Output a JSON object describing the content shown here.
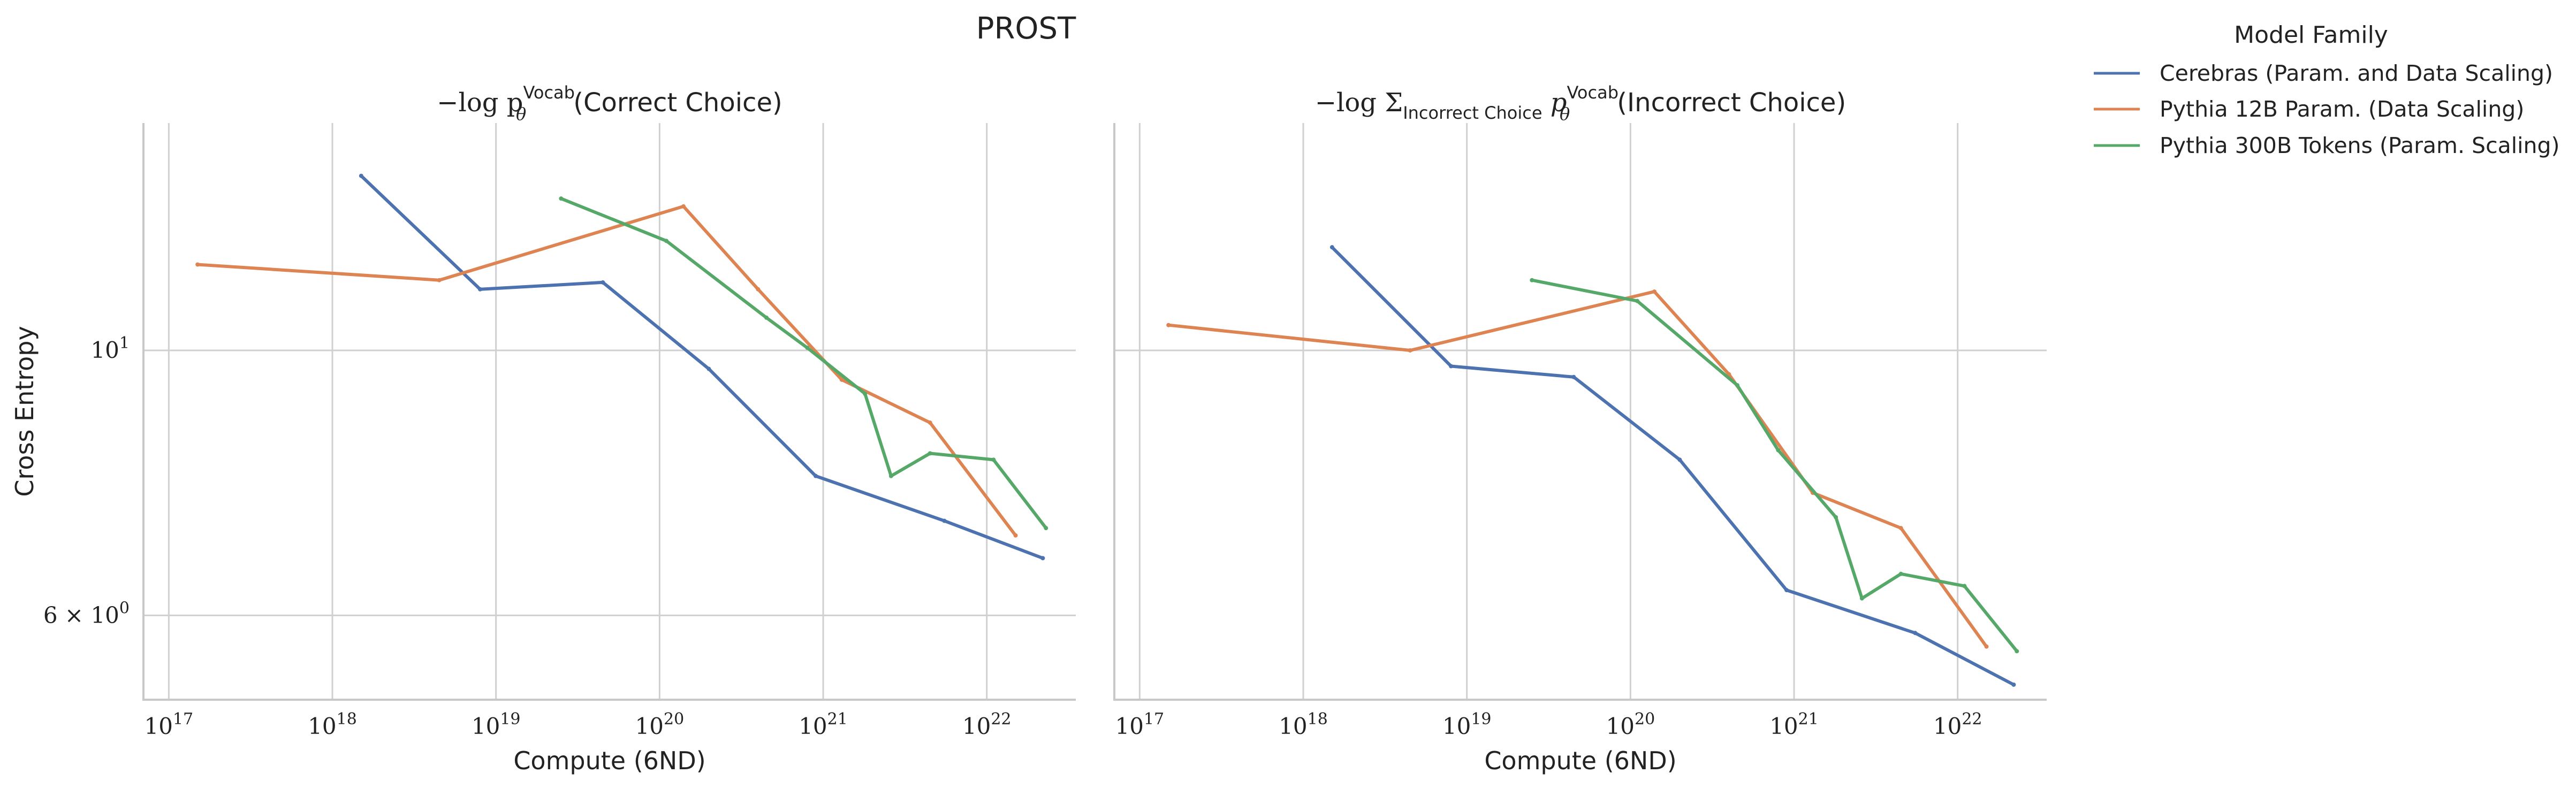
{
  "figure": {
    "title": "PROST",
    "legend": {
      "title": "Model Family",
      "placement": "top-right, outside plots",
      "entries": [
        {
          "label": "Cerebras (Param. and Data Scaling)",
          "color": "#4c72b0"
        },
        {
          "label": "Pythia 12B Param. (Data Scaling)",
          "color": "#dd8452"
        },
        {
          "label": "Pythia 300B Tokens (Param. Scaling)",
          "color": "#55a868"
        }
      ]
    }
  },
  "chart_data": [
    {
      "type": "line",
      "title": {
        "prefix": "−log p",
        "sup": "Vocab",
        "sub": "θ",
        "suffix": "(Correct Choice)"
      },
      "xlabel": "Compute (6ND)",
      "ylabel": "Cross Entropy",
      "xscale": "log",
      "yscale": "log",
      "xlim": [
        7e+16,
        3.5e+22
      ],
      "ylim": [
        5.1,
        15.5
      ],
      "xticks": [
        {
          "value": 1e+17,
          "base": "10",
          "exp": "17"
        },
        {
          "value": 1e+18,
          "base": "10",
          "exp": "18"
        },
        {
          "value": 1e+19,
          "base": "10",
          "exp": "19"
        },
        {
          "value": 1e+20,
          "base": "10",
          "exp": "20"
        },
        {
          "value": 1e+21,
          "base": "10",
          "exp": "21"
        },
        {
          "value": 1e+22,
          "base": "10",
          "exp": "22"
        }
      ],
      "yticks": [
        {
          "value": 10,
          "base": "10",
          "exp": "1"
        },
        {
          "value": 6,
          "base": "6 × 10",
          "exp": "0"
        }
      ],
      "grid": true,
      "series": [
        {
          "name": "Cerebras (Param. and Data Scaling)",
          "color": "#4c72b0",
          "x": [
            1.5e+18,
            8e+18,
            4.5e+19,
            2e+20,
            9e+20,
            5.5e+21,
            2.2e+22
          ],
          "y": [
            14.0,
            11.25,
            11.4,
            9.65,
            7.85,
            7.2,
            6.7
          ]
        },
        {
          "name": "Pythia 12B Param. (Data Scaling)",
          "color": "#dd8452",
          "x": [
            1.5e+17,
            4.5e+18,
            1.4e+20,
            4e+20,
            1.3e+21,
            4.5e+21,
            1.5e+22
          ],
          "y": [
            11.8,
            11.45,
            13.2,
            11.25,
            9.45,
            8.7,
            7.0
          ]
        },
        {
          "name": "Pythia 300B Tokens (Param. Scaling)",
          "color": "#55a868",
          "x": [
            2.5e+19,
            1.1e+20,
            4.5e+20,
            8e+20,
            1.8e+21,
            2.6e+21,
            4.5e+21,
            1.1e+22,
            2.3e+22
          ],
          "y": [
            13.4,
            12.35,
            10.65,
            10.05,
            9.2,
            7.85,
            8.2,
            8.1,
            7.1
          ]
        }
      ]
    },
    {
      "type": "line",
      "title": {
        "prefix": "−log Σ",
        "sumsub": "Incorrect Choice",
        "mid": " p",
        "sup": "Vocab",
        "sub": "θ",
        "suffix": "(Incorrect Choice)"
      },
      "xlabel": "Compute (6ND)",
      "ylabel": "",
      "xscale": "log",
      "yscale": "log",
      "xlim": [
        7e+16,
        3.5e+22
      ],
      "ylim": [
        5.1,
        15.5
      ],
      "xticks": [
        {
          "value": 1e+17,
          "base": "10",
          "exp": "17"
        },
        {
          "value": 1e+18,
          "base": "10",
          "exp": "18"
        },
        {
          "value": 1e+19,
          "base": "10",
          "exp": "19"
        },
        {
          "value": 1e+20,
          "base": "10",
          "exp": "20"
        },
        {
          "value": 1e+21,
          "base": "10",
          "exp": "21"
        },
        {
          "value": 1e+22,
          "base": "10",
          "exp": "22"
        }
      ],
      "yticks": [],
      "grid": true,
      "series": [
        {
          "name": "Cerebras (Param. and Data Scaling)",
          "color": "#4c72b0",
          "x": [
            1.5e+18,
            8e+18,
            4.5e+19,
            2e+20,
            9e+20,
            5.5e+21,
            2.2e+22
          ],
          "y": [
            12.2,
            9.7,
            9.5,
            8.1,
            6.3,
            5.8,
            5.25
          ]
        },
        {
          "name": "Pythia 12B Param. (Data Scaling)",
          "color": "#dd8452",
          "x": [
            1.5e+17,
            4.5e+18,
            1.4e+20,
            4e+20,
            1.3e+21,
            4.5e+21,
            1.5e+22
          ],
          "y": [
            10.5,
            10.0,
            11.2,
            9.55,
            7.6,
            7.1,
            5.65
          ]
        },
        {
          "name": "Pythia 300B Tokens (Param. Scaling)",
          "color": "#55a868",
          "x": [
            2.5e+19,
            1.1e+20,
            4.5e+20,
            8e+20,
            1.8e+21,
            2.6e+21,
            4.5e+21,
            1.1e+22,
            2.3e+22
          ],
          "y": [
            11.45,
            11.0,
            9.35,
            8.25,
            7.25,
            6.2,
            6.5,
            6.35,
            5.6
          ]
        }
      ]
    }
  ]
}
